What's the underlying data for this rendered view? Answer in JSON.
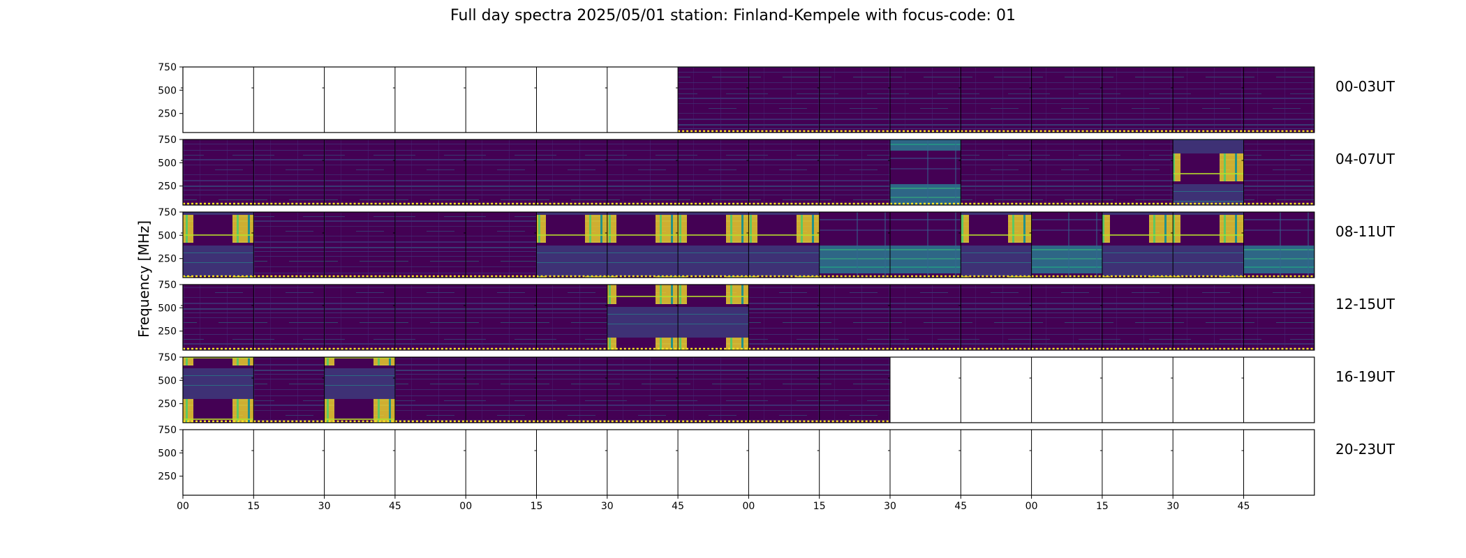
{
  "title": "Full day spectra 2025/05/01 station: Finland-Kempele with focus-code: 01",
  "chart_data": {
    "type": "heatmap",
    "title": "Full day spectra 2025/05/01 station: Finland-Kempele with focus-code: 01",
    "ylabel": "Frequency [MHz]",
    "xlabel": "",
    "ylim": [
      45,
      750
    ],
    "y_ticks": [
      "250",
      "500",
      "750"
    ],
    "x_ticks": [
      "00",
      "15",
      "30",
      "45",
      "00",
      "15",
      "30",
      "45",
      "00",
      "15",
      "30",
      "45",
      "00",
      "15",
      "30",
      "45"
    ],
    "colormap": [
      "#440154",
      "#3b528b",
      "#21918c",
      "#5ec962",
      "#fde725"
    ],
    "rows": [
      {
        "label": "00-03UT",
        "panels": [
          "empty",
          "empty",
          "empty",
          "empty",
          "empty",
          "empty",
          "empty",
          "quiet",
          "quiet",
          "quiet",
          "quiet",
          "quiet",
          "quiet",
          "quiet",
          "quiet",
          "quiet"
        ]
      },
      {
        "label": "04-07UT",
        "panels": [
          "quiet",
          "quiet",
          "quiet",
          "quiet",
          "quiet",
          "quiet",
          "quiet",
          "quiet",
          "quiet",
          "quiet",
          "active",
          "quiet",
          "quiet",
          "quiet",
          "burst",
          "quiet"
        ]
      },
      {
        "label": "08-11UT",
        "panels": [
          "burst",
          "quiet",
          "quiet",
          "quiet",
          "quiet",
          "burst",
          "burst",
          "burst",
          "burst",
          "active",
          "active",
          "burst",
          "active",
          "burst",
          "burst",
          "active"
        ]
      },
      {
        "label": "12-15UT",
        "panels": [
          "quiet",
          "quiet",
          "quiet",
          "quiet",
          "quiet",
          "quiet",
          "burst",
          "burst",
          "quiet",
          "quiet",
          "quiet",
          "quiet",
          "quiet",
          "quiet",
          "quiet",
          "quiet"
        ]
      },
      {
        "label": "16-19UT",
        "panels": [
          "burst",
          "quiet",
          "burst",
          "quiet",
          "quiet",
          "quiet",
          "quiet",
          "quiet",
          "quiet",
          "quiet",
          "empty",
          "empty",
          "empty",
          "empty",
          "empty",
          "empty"
        ]
      },
      {
        "label": "20-23UT",
        "panels": [
          "empty",
          "empty",
          "empty",
          "empty",
          "empty",
          "empty",
          "empty",
          "empty",
          "empty",
          "empty",
          "empty",
          "empty",
          "empty",
          "empty",
          "empty",
          "empty"
        ]
      }
    ]
  }
}
